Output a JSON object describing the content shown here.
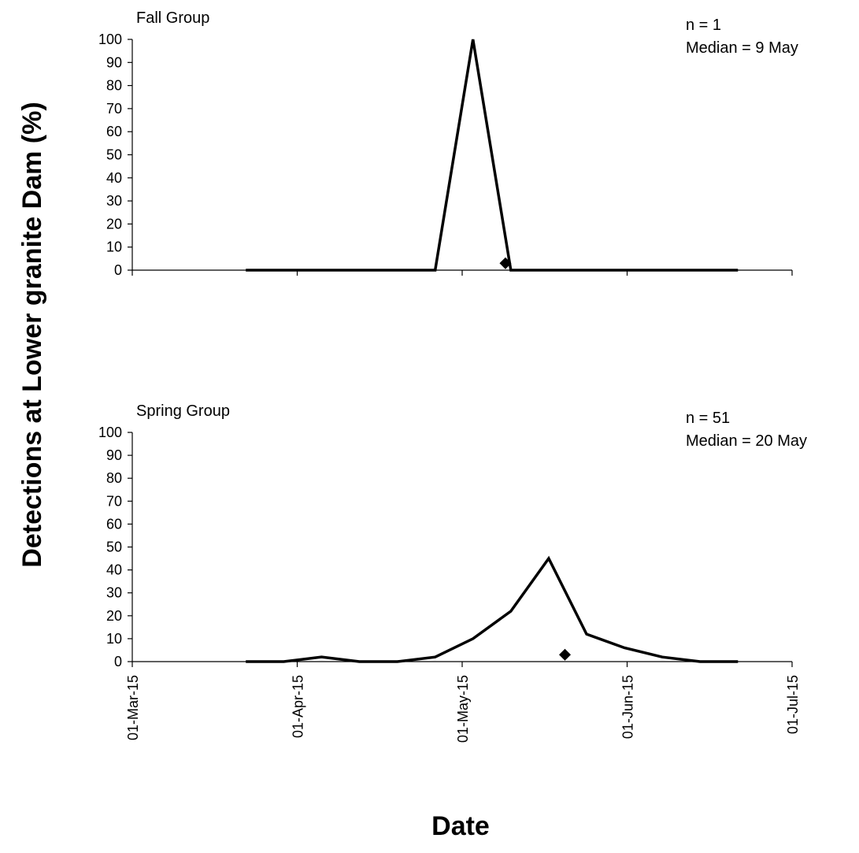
{
  "ylabel": "Detections at Lower granite Dam (%)",
  "xlabel": "Date",
  "x_tick_labels": [
    "01-Mar-15",
    "01-Apr-15",
    "01-May-15",
    "01-Jun-15",
    "01-Jul-15"
  ],
  "chart_data": [
    {
      "type": "line",
      "title": "Fall Group",
      "annotation_n": "n = 1",
      "annotation_median": "Median = 9 May",
      "xlabel": "Date",
      "ylabel": "Detections at Lower granite Dam (%)",
      "xlim": [
        "2015-03-01",
        "2015-07-01"
      ],
      "ylim": [
        0,
        100
      ],
      "yticks": [
        0,
        10,
        20,
        30,
        40,
        50,
        60,
        70,
        80,
        90,
        100
      ],
      "grid": false,
      "line_color": "#000000",
      "series": [
        {
          "x": [
            "2015-03-22",
            "2015-03-29",
            "2015-04-05",
            "2015-04-12",
            "2015-04-19",
            "2015-04-26",
            "2015-05-03",
            "2015-05-10",
            "2015-05-17",
            "2015-05-24",
            "2015-05-31",
            "2015-06-07",
            "2015-06-14",
            "2015-06-21"
          ],
          "y": [
            0,
            0,
            0,
            0,
            0,
            0,
            100,
            0,
            0,
            0,
            0,
            0,
            0,
            0
          ]
        }
      ],
      "median_marker": {
        "x": "2015-05-09",
        "y": 3
      }
    },
    {
      "type": "line",
      "title": "Spring Group",
      "annotation_n": "n = 51",
      "annotation_median": "Median = 20 May",
      "xlabel": "Date",
      "ylabel": "Detections at Lower granite Dam (%)",
      "xlim": [
        "2015-03-01",
        "2015-07-01"
      ],
      "ylim": [
        0,
        100
      ],
      "yticks": [
        0,
        10,
        20,
        30,
        40,
        50,
        60,
        70,
        80,
        90,
        100
      ],
      "grid": false,
      "line_color": "#000000",
      "series": [
        {
          "x": [
            "2015-03-22",
            "2015-03-29",
            "2015-04-05",
            "2015-04-12",
            "2015-04-19",
            "2015-04-26",
            "2015-05-03",
            "2015-05-10",
            "2015-05-17",
            "2015-05-24",
            "2015-05-31",
            "2015-06-07",
            "2015-06-14",
            "2015-06-21"
          ],
          "y": [
            0,
            0,
            2,
            0,
            0,
            2,
            10,
            22,
            45,
            12,
            6,
            2,
            0,
            0
          ]
        }
      ],
      "median_marker": {
        "x": "2015-05-20",
        "y": 3
      }
    }
  ]
}
